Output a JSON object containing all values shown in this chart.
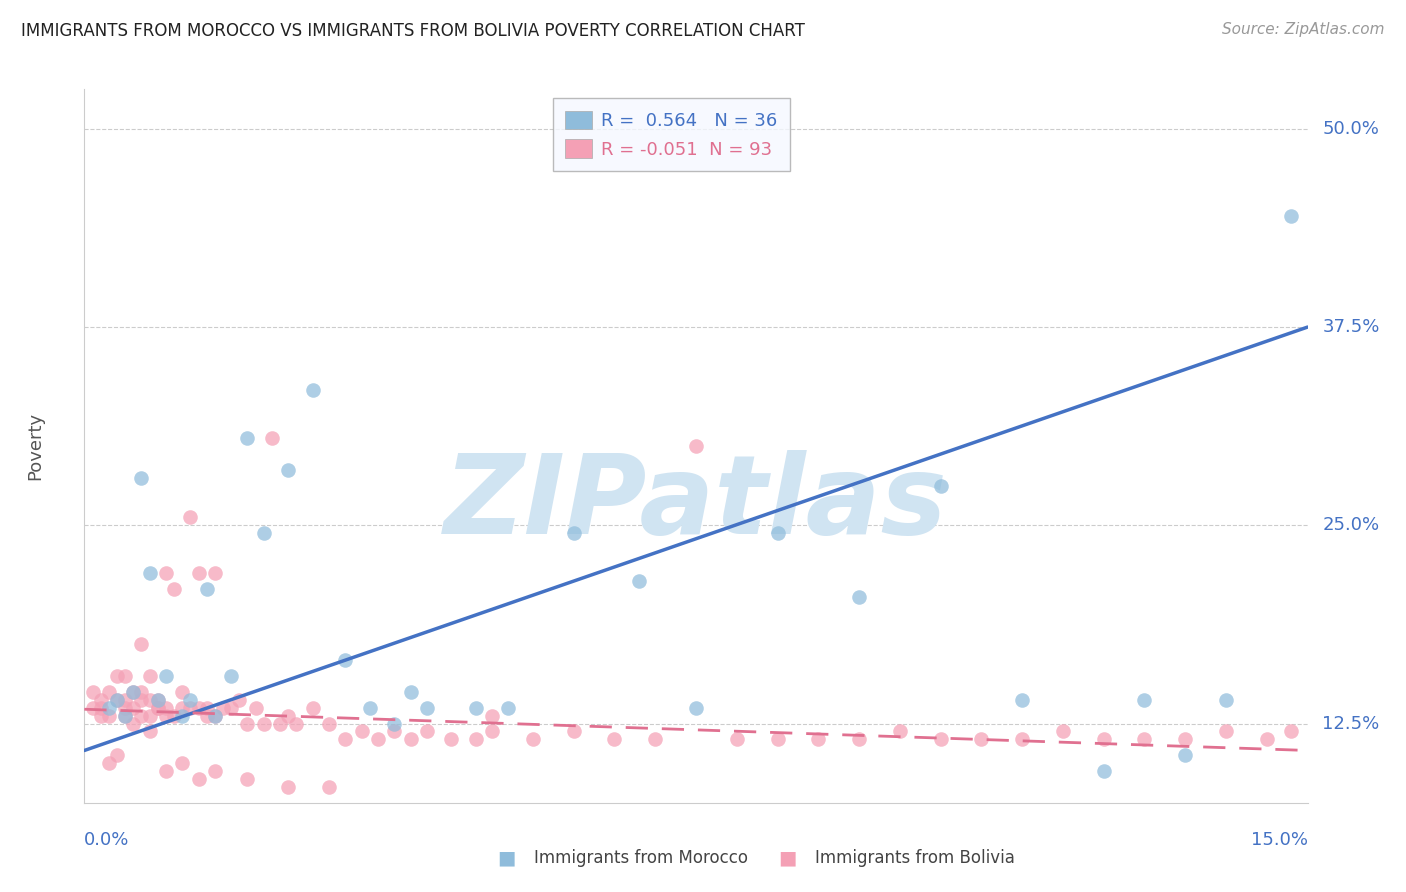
{
  "title": "IMMIGRANTS FROM MOROCCO VS IMMIGRANTS FROM BOLIVIA POVERTY CORRELATION CHART",
  "source": "Source: ZipAtlas.com",
  "xlabel_bottom_left": "0.0%",
  "xlabel_bottom_right": "15.0%",
  "ylabel": "Poverty",
  "ytick_labels": [
    "12.5%",
    "25.0%",
    "37.5%",
    "50.0%"
  ],
  "ytick_values": [
    0.125,
    0.25,
    0.375,
    0.5
  ],
  "xlim": [
    0.0,
    0.15
  ],
  "ylim": [
    0.075,
    0.525
  ],
  "morocco_R": 0.564,
  "morocco_N": 36,
  "bolivia_R": -0.051,
  "bolivia_N": 93,
  "morocco_color": "#8fbcdb",
  "bolivia_color": "#f4a0b5",
  "morocco_line_color": "#4472c4",
  "bolivia_line_color": "#e07090",
  "background_color": "#ffffff",
  "watermark": "ZIPatlas",
  "watermark_color": "#d0e4f2",
  "title_color": "#222222",
  "axis_label_color": "#4472c4",
  "morocco_line_x0": 0.0,
  "morocco_line_y0": 0.108,
  "morocco_line_x1": 0.15,
  "morocco_line_y1": 0.375,
  "bolivia_line_x0": 0.0,
  "bolivia_line_y0": 0.134,
  "bolivia_line_x1": 0.15,
  "bolivia_line_y1": 0.108,
  "morocco_scatter_x": [
    0.003,
    0.004,
    0.005,
    0.006,
    0.007,
    0.008,
    0.009,
    0.01,
    0.012,
    0.013,
    0.015,
    0.016,
    0.018,
    0.02,
    0.022,
    0.025,
    0.028,
    0.032,
    0.035,
    0.038,
    0.04,
    0.042,
    0.048,
    0.052,
    0.06,
    0.068,
    0.075,
    0.085,
    0.095,
    0.105,
    0.115,
    0.125,
    0.13,
    0.135,
    0.14,
    0.148
  ],
  "morocco_scatter_y": [
    0.135,
    0.14,
    0.13,
    0.145,
    0.28,
    0.22,
    0.14,
    0.155,
    0.13,
    0.14,
    0.21,
    0.13,
    0.155,
    0.305,
    0.245,
    0.285,
    0.335,
    0.165,
    0.135,
    0.125,
    0.145,
    0.135,
    0.135,
    0.135,
    0.245,
    0.215,
    0.135,
    0.245,
    0.205,
    0.275,
    0.14,
    0.095,
    0.14,
    0.105,
    0.14,
    0.445
  ],
  "bolivia_scatter_x": [
    0.001,
    0.001,
    0.002,
    0.002,
    0.003,
    0.003,
    0.004,
    0.004,
    0.005,
    0.005,
    0.005,
    0.005,
    0.006,
    0.006,
    0.006,
    0.007,
    0.007,
    0.007,
    0.008,
    0.008,
    0.008,
    0.008,
    0.009,
    0.009,
    0.01,
    0.01,
    0.01,
    0.011,
    0.011,
    0.012,
    0.012,
    0.013,
    0.013,
    0.014,
    0.014,
    0.015,
    0.015,
    0.016,
    0.016,
    0.017,
    0.018,
    0.019,
    0.02,
    0.021,
    0.022,
    0.023,
    0.024,
    0.025,
    0.026,
    0.028,
    0.03,
    0.032,
    0.034,
    0.036,
    0.038,
    0.04,
    0.042,
    0.045,
    0.048,
    0.05,
    0.055,
    0.06,
    0.065,
    0.07,
    0.075,
    0.08,
    0.085,
    0.09,
    0.095,
    0.1,
    0.105,
    0.11,
    0.115,
    0.12,
    0.125,
    0.13,
    0.135,
    0.14,
    0.145,
    0.148,
    0.002,
    0.003,
    0.004,
    0.007,
    0.009,
    0.01,
    0.012,
    0.014,
    0.016,
    0.02,
    0.025,
    0.03,
    0.05
  ],
  "bolivia_scatter_y": [
    0.145,
    0.135,
    0.13,
    0.14,
    0.13,
    0.145,
    0.14,
    0.155,
    0.135,
    0.14,
    0.13,
    0.155,
    0.145,
    0.135,
    0.125,
    0.13,
    0.145,
    0.14,
    0.14,
    0.155,
    0.13,
    0.12,
    0.135,
    0.14,
    0.13,
    0.22,
    0.135,
    0.13,
    0.21,
    0.145,
    0.135,
    0.255,
    0.135,
    0.135,
    0.22,
    0.135,
    0.13,
    0.22,
    0.13,
    0.135,
    0.135,
    0.14,
    0.125,
    0.135,
    0.125,
    0.305,
    0.125,
    0.13,
    0.125,
    0.135,
    0.125,
    0.115,
    0.12,
    0.115,
    0.12,
    0.115,
    0.12,
    0.115,
    0.115,
    0.12,
    0.115,
    0.12,
    0.115,
    0.115,
    0.3,
    0.115,
    0.115,
    0.115,
    0.115,
    0.12,
    0.115,
    0.115,
    0.115,
    0.12,
    0.115,
    0.115,
    0.115,
    0.12,
    0.115,
    0.12,
    0.135,
    0.1,
    0.105,
    0.175,
    0.135,
    0.095,
    0.1,
    0.09,
    0.095,
    0.09,
    0.085,
    0.085,
    0.13
  ]
}
